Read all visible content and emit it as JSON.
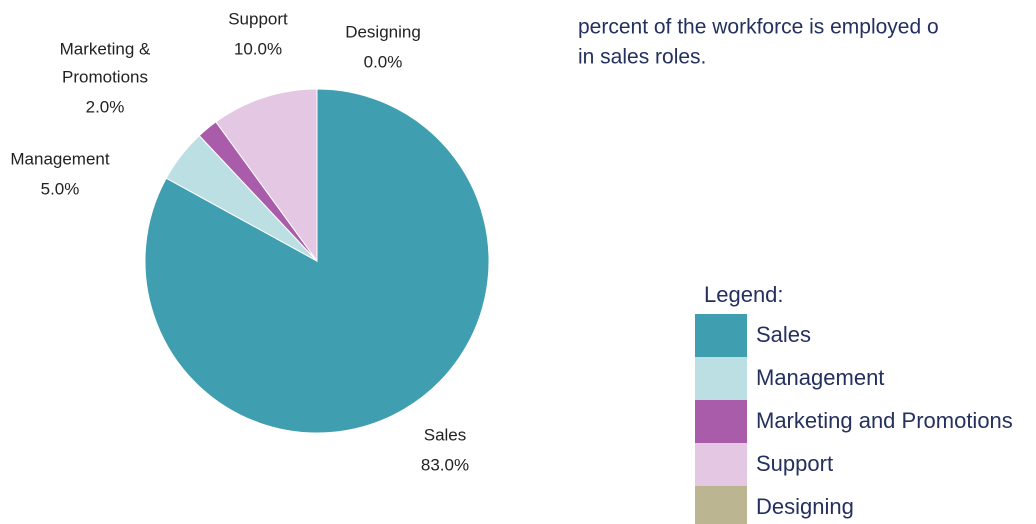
{
  "chart_data": {
    "type": "pie",
    "text_lines": [
      "percent of the workforce is employed o",
      "in sales roles."
    ],
    "categories": [
      "Sales",
      "Management",
      "Marketing and Promotions",
      "Support",
      "Designing"
    ],
    "slice_labels": [
      [
        "Sales"
      ],
      [
        "Management"
      ],
      [
        "Marketing &",
        "Promotions"
      ],
      [
        "Support"
      ],
      [
        "Designing"
      ]
    ],
    "values": [
      83,
      5,
      2,
      10,
      0
    ],
    "value_labels": [
      "83.0%",
      "5.0%",
      "2.0%",
      "10.0%",
      "0.0%"
    ],
    "colors": [
      "#3f9eb0",
      "#bcdfe3",
      "#a95ca9",
      "#e3c7e3",
      "#bcb591"
    ],
    "legend_title": "Legend:",
    "legend": "bottom-right"
  }
}
